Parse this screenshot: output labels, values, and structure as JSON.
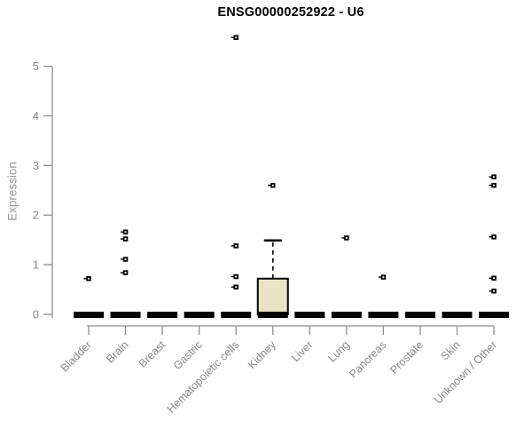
{
  "chart_data": {
    "type": "box",
    "title": "ENSG00000252922 - U6",
    "ylabel": "Expression",
    "xlabel": "",
    "ylim": [
      0,
      5
    ],
    "yticks": [
      0,
      1,
      2,
      3,
      4,
      5
    ],
    "grid": false,
    "legend": "none",
    "categories": [
      "Bladder",
      "Brain",
      "Breast",
      "Gastric",
      "Hematopoietic cells",
      "Kidney",
      "Liver",
      "Lung",
      "Pancreas",
      "Prostate",
      "Skin",
      "Unknown / Other"
    ],
    "boxes": [
      {
        "category": "Bladder",
        "whisker_low": 0,
        "q1": 0,
        "median": 0,
        "q3": 0,
        "whisker_high": 0,
        "outliers": [
          0.72
        ]
      },
      {
        "category": "Brain",
        "whisker_low": 0,
        "q1": 0,
        "median": 0,
        "q3": 0,
        "whisker_high": 0,
        "outliers": [
          1.66,
          1.52,
          1.11,
          0.84
        ]
      },
      {
        "category": "Breast",
        "whisker_low": 0,
        "q1": 0,
        "median": 0,
        "q3": 0,
        "whisker_high": 0,
        "outliers": []
      },
      {
        "category": "Gastric",
        "whisker_low": 0,
        "q1": 0,
        "median": 0,
        "q3": 0,
        "whisker_high": 0,
        "outliers": []
      },
      {
        "category": "Hematopoietic cells",
        "whisker_low": 0,
        "q1": 0,
        "median": 0,
        "q3": 0,
        "whisker_high": 0,
        "outliers": [
          5.58,
          1.38,
          0.76,
          0.55
        ]
      },
      {
        "category": "Kidney",
        "whisker_low": 0,
        "q1": 0,
        "median": 0,
        "q3": 0.72,
        "whisker_high": 1.49,
        "outliers": [
          2.6
        ]
      },
      {
        "category": "Liver",
        "whisker_low": 0,
        "q1": 0,
        "median": 0,
        "q3": 0,
        "whisker_high": 0,
        "outliers": []
      },
      {
        "category": "Lung",
        "whisker_low": 0,
        "q1": 0,
        "median": 0,
        "q3": 0,
        "whisker_high": 0,
        "outliers": [
          1.54
        ]
      },
      {
        "category": "Pancreas",
        "whisker_low": 0,
        "q1": 0,
        "median": 0,
        "q3": 0,
        "whisker_high": 0,
        "outliers": [
          0.75
        ]
      },
      {
        "category": "Prostate",
        "whisker_low": 0,
        "q1": 0,
        "median": 0,
        "q3": 0,
        "whisker_high": 0,
        "outliers": []
      },
      {
        "category": "Skin",
        "whisker_low": 0,
        "q1": 0,
        "median": 0,
        "q3": 0,
        "whisker_high": 0,
        "outliers": []
      },
      {
        "category": "Unknown / Other",
        "whisker_low": 0,
        "q1": 0,
        "median": 0,
        "q3": 0,
        "whisker_high": 0,
        "outliers": [
          2.77,
          2.6,
          1.56,
          0.73,
          0.47
        ]
      }
    ],
    "colors": {
      "box_fill": "#e9e4c8",
      "box_border": "#000000",
      "median": "#000000",
      "outlier": "#000000",
      "axis_line": "#8f8f8f",
      "tick_label": "#878787",
      "axis_title": "#999999",
      "title": "#000000",
      "background": "#ffffff"
    }
  }
}
